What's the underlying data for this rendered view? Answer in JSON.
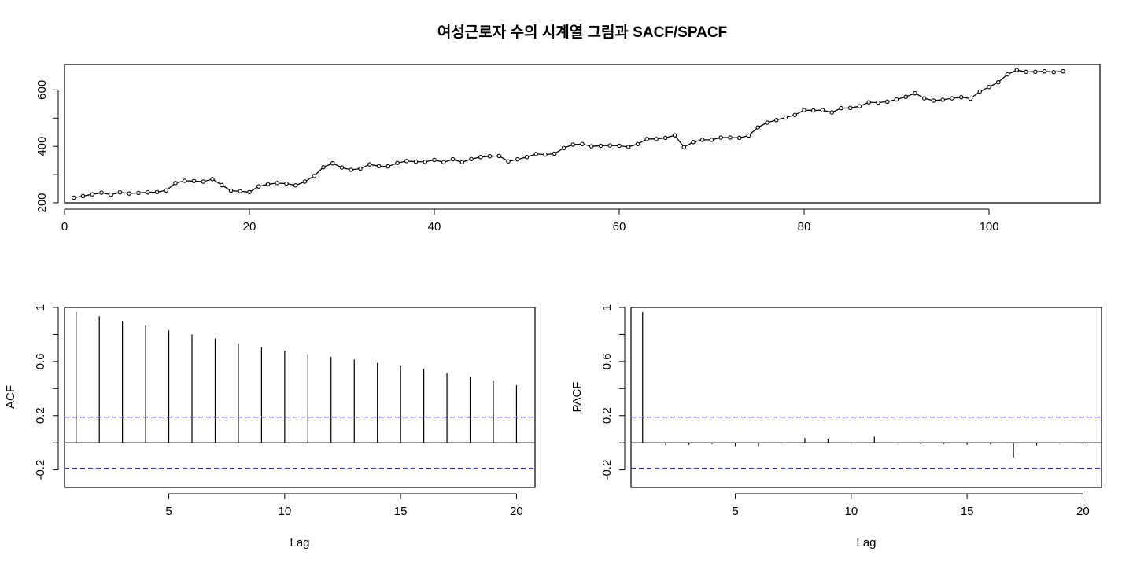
{
  "page_title": "여성근로자 수의 시계열 그림과 SACF/SPACF",
  "chart_data": [
    {
      "type": "line",
      "title": "여성근로자 수의 시계열 그림과 SACF/SPACF",
      "xlabel": "",
      "ylabel": "",
      "xlim": [
        0,
        112
      ],
      "ylim": [
        200,
        690
      ],
      "xticks": [
        0,
        20,
        40,
        60,
        80,
        100
      ],
      "yticks": [
        200,
        400,
        600
      ],
      "yticks_minor": [
        300,
        500
      ],
      "grid": false,
      "markers": true,
      "series": [
        {
          "x": [
            1,
            2,
            3,
            4,
            5,
            6,
            7,
            8,
            9,
            10,
            11,
            12,
            13,
            14,
            15,
            16,
            17,
            18,
            19,
            20,
            21,
            22,
            23,
            24,
            25,
            26,
            27,
            28,
            29,
            30,
            31,
            32,
            33,
            34,
            35,
            36,
            37,
            38,
            39,
            40,
            41,
            42,
            43,
            44,
            45,
            46,
            47,
            48,
            49,
            50,
            51,
            52,
            53,
            54,
            55,
            56,
            57,
            58,
            59,
            60,
            61,
            62,
            63,
            64,
            65,
            66,
            67,
            68,
            69,
            70,
            71,
            72,
            73,
            74,
            75,
            76,
            77,
            78,
            79,
            80,
            81,
            82,
            83,
            84,
            85,
            86,
            87,
            88,
            89,
            90,
            91,
            92,
            93,
            94,
            95,
            96,
            97,
            98,
            99,
            100,
            101,
            102,
            103,
            104,
            105,
            106,
            107,
            108
          ],
          "values": [
            218,
            224,
            230,
            236,
            229,
            237,
            233,
            235,
            237,
            238,
            244,
            270,
            278,
            277,
            275,
            284,
            263,
            243,
            241,
            238,
            258,
            266,
            270,
            268,
            262,
            275,
            295,
            326,
            340,
            325,
            317,
            321,
            336,
            330,
            329,
            341,
            348,
            346,
            345,
            352,
            344,
            354,
            344,
            355,
            362,
            365,
            366,
            347,
            354,
            362,
            373,
            371,
            374,
            394,
            406,
            408,
            400,
            402,
            403,
            402,
            398,
            408,
            426,
            426,
            430,
            439,
            397,
            415,
            423,
            423,
            431,
            431,
            430,
            438,
            467,
            484,
            493,
            502,
            511,
            528,
            527,
            528,
            520,
            535,
            536,
            542,
            556,
            555,
            558,
            566,
            575,
            588,
            570,
            562,
            565,
            570,
            574,
            569,
            594,
            610,
            627,
            655,
            670,
            664,
            664,
            666,
            663,
            666
          ]
        }
      ]
    },
    {
      "type": "bar",
      "title": "",
      "xlabel": "Lag",
      "ylabel": "ACF",
      "xlim": [
        0.5,
        20.8
      ],
      "ylim": [
        -0.33,
        1.0
      ],
      "xticks": [
        5,
        10,
        15,
        20
      ],
      "yticks": [
        -0.2,
        0.2,
        0.6,
        1.0
      ],
      "yticks_minor": [
        0.0,
        0.4,
        0.8
      ],
      "ci": 0.189,
      "grid": false,
      "x": [
        1,
        2,
        3,
        4,
        5,
        6,
        7,
        8,
        9,
        10,
        11,
        12,
        13,
        14,
        15,
        16,
        17,
        18,
        19,
        20
      ],
      "values": [
        0.965,
        0.935,
        0.9,
        0.865,
        0.83,
        0.8,
        0.77,
        0.735,
        0.705,
        0.68,
        0.655,
        0.635,
        0.615,
        0.59,
        0.57,
        0.545,
        0.515,
        0.485,
        0.455,
        0.425
      ]
    },
    {
      "type": "bar",
      "title": "",
      "xlabel": "Lag",
      "ylabel": "PACF",
      "xlim": [
        0.5,
        20.8
      ],
      "ylim": [
        -0.33,
        1.0
      ],
      "xticks": [
        5,
        10,
        15,
        20
      ],
      "yticks": [
        -0.2,
        0.2,
        0.6,
        1.0
      ],
      "yticks_minor": [
        0.0,
        0.4,
        0.8
      ],
      "ci": 0.189,
      "grid": false,
      "x": [
        1,
        2,
        3,
        4,
        5,
        6,
        7,
        8,
        9,
        10,
        11,
        12,
        13,
        14,
        15,
        16,
        17,
        18,
        19,
        20
      ],
      "values": [
        0.965,
        -0.02,
        -0.015,
        -0.01,
        -0.025,
        -0.025,
        -0.005,
        0.035,
        0.03,
        -0.005,
        0.045,
        -0.005,
        -0.01,
        -0.01,
        -0.015,
        -0.01,
        -0.11,
        -0.02,
        -0.005,
        -0.01
      ]
    }
  ]
}
